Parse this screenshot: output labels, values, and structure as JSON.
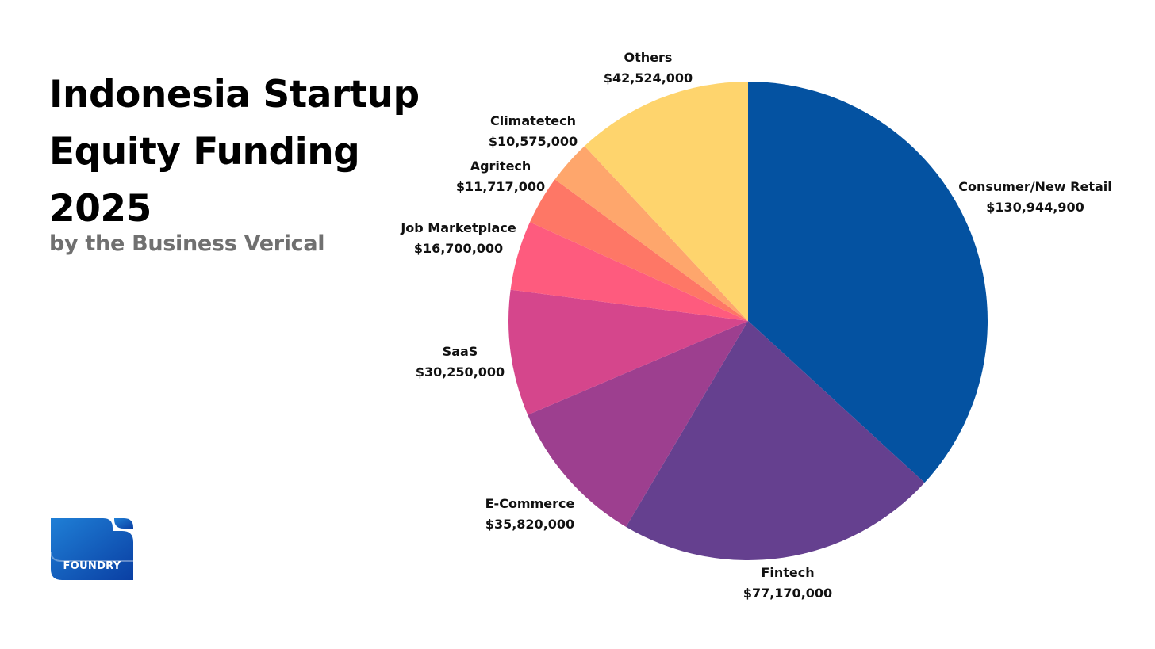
{
  "header": {
    "title_line1": "Indonesia Startup",
    "title_line2": "Equity Funding",
    "title_line3": "2025",
    "subtitle": "by the Business Verical"
  },
  "logo": {
    "text": "FOUNDRY",
    "colors": [
      "#1f7fd6",
      "#0a3fa3"
    ]
  },
  "chart_data": {
    "type": "pie",
    "title": "Indonesia Startup Equity Funding 2025",
    "subtitle": "by the Business Verical",
    "start": "12 o'clock",
    "direction": "clockwise",
    "slices": [
      {
        "label": "Consumer/New Retail",
        "value": 130944900,
        "value_label": "$130,944,900",
        "color": "#0452a1"
      },
      {
        "label": "Fintech",
        "value": 77170000,
        "value_label": "$77,170,000",
        "color": "#65408f"
      },
      {
        "label": "E-Commerce",
        "value": 35820000,
        "value_label": "$35,820,000",
        "color": "#9d3f8f"
      },
      {
        "label": "SaaS",
        "value": 30250000,
        "value_label": "$30,250,000",
        "color": "#d5468c"
      },
      {
        "label": "Job Marketplace",
        "value": 16700000,
        "value_label": "$16,700,000",
        "color": "#fe5b7e"
      },
      {
        "label": "Agritech",
        "value": 11717000,
        "value_label": "$11,717,000",
        "color": "#fe7766"
      },
      {
        "label": "Climatetech",
        "value": 10575000,
        "value_label": "$10,575,000",
        "color": "#fea66c"
      },
      {
        "label": "Others",
        "value": 42524000,
        "value_label": "$42,524,000",
        "color": "#fed46d"
      }
    ]
  }
}
